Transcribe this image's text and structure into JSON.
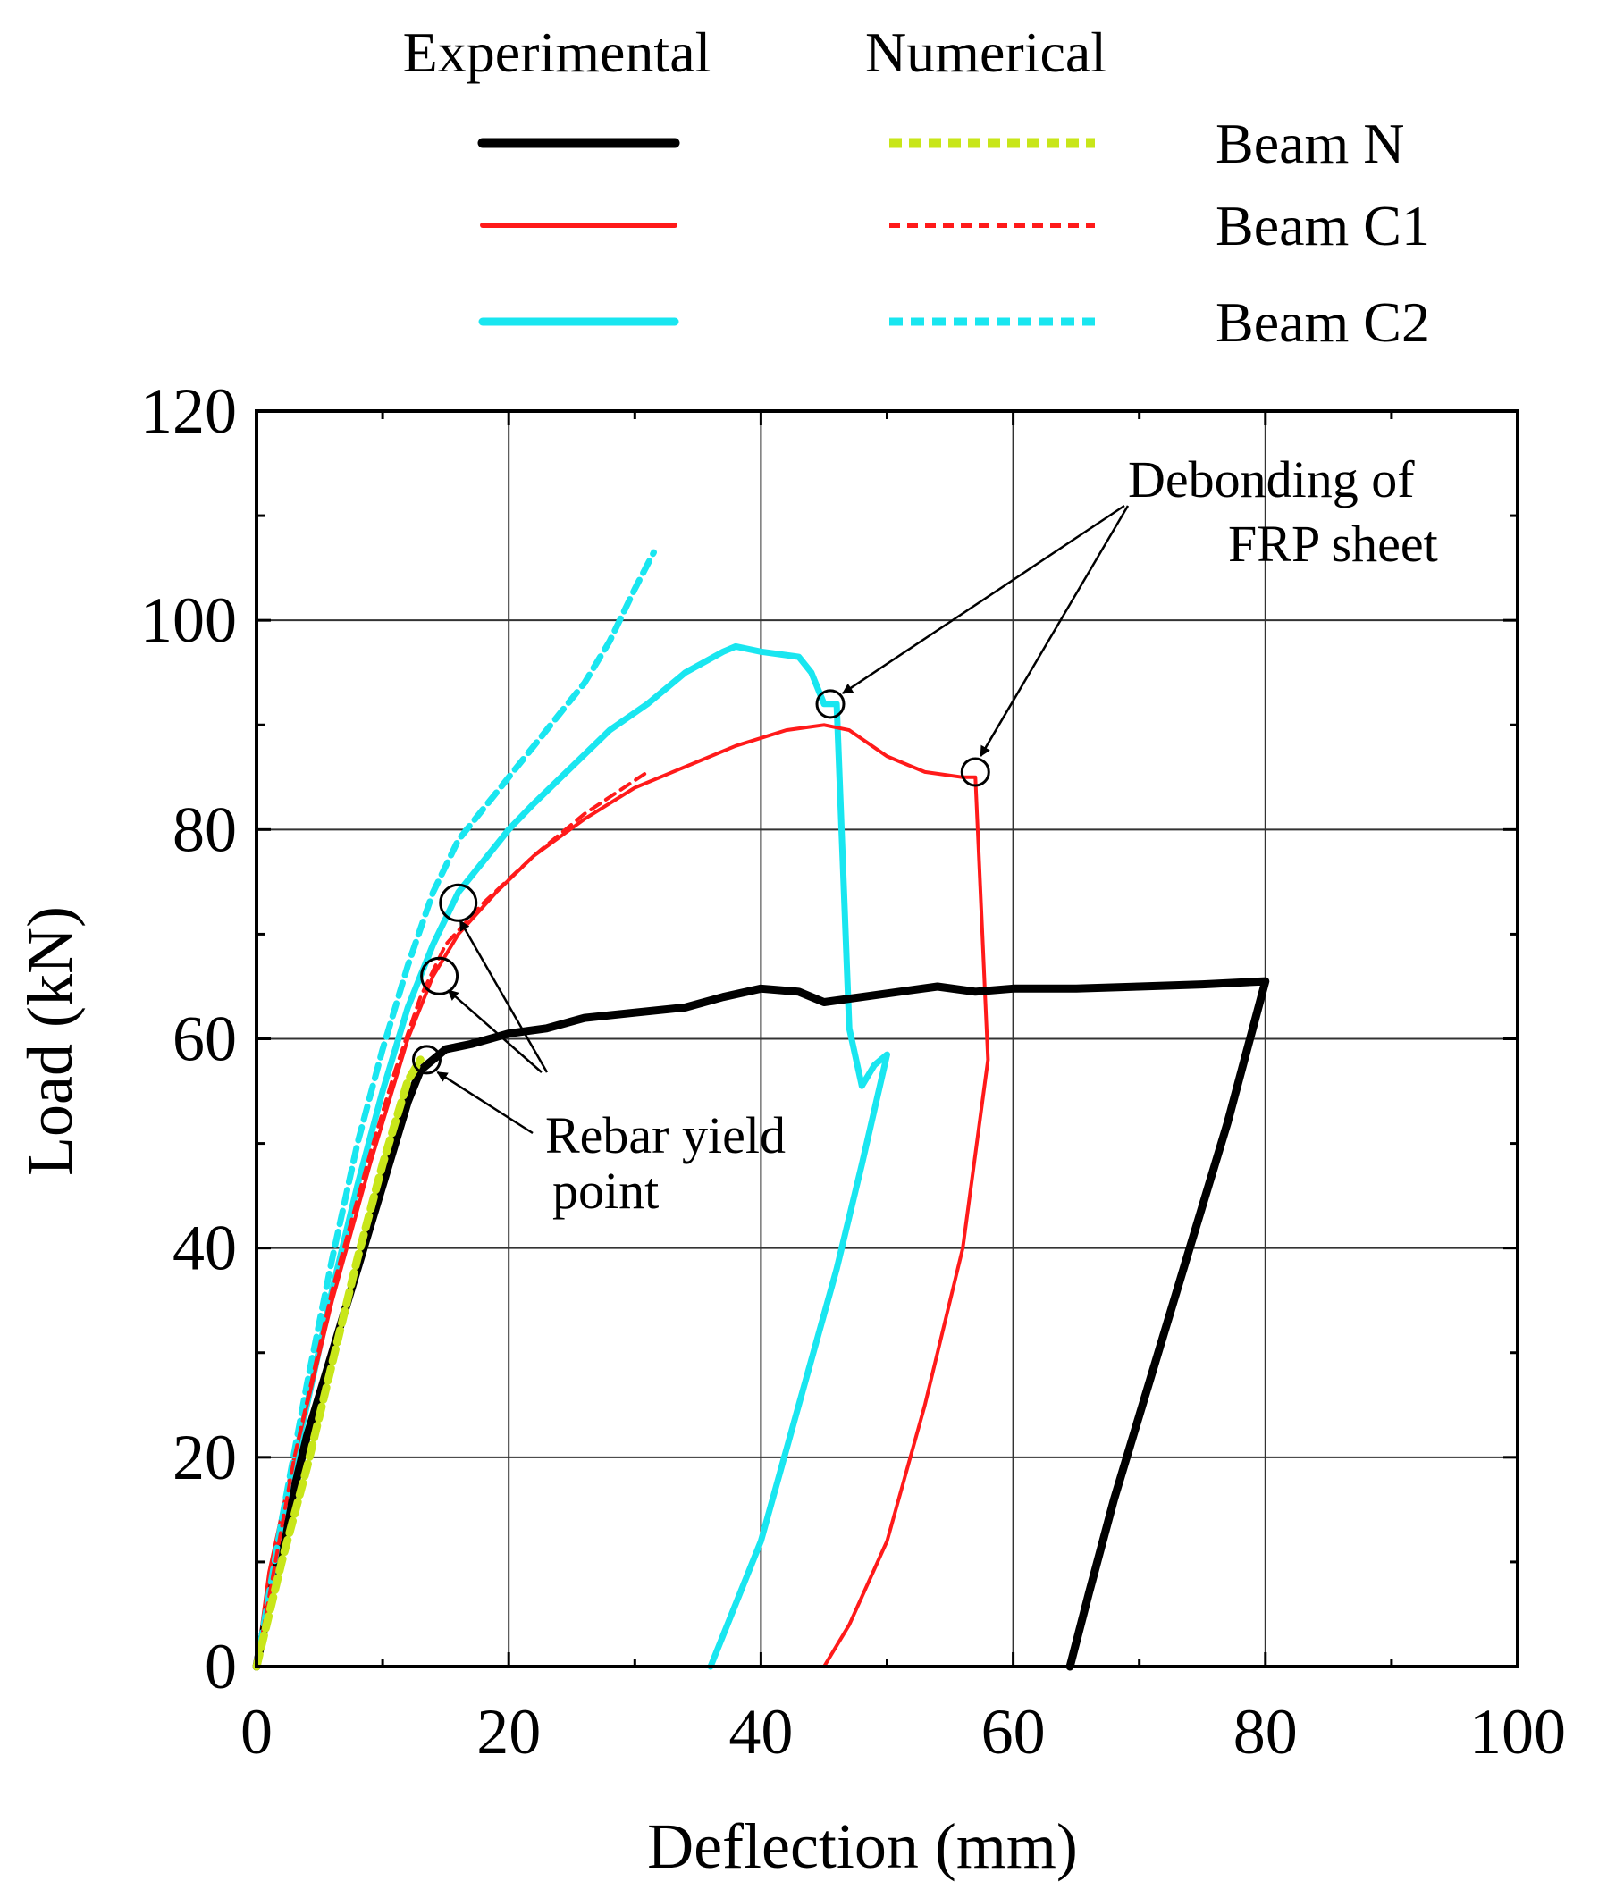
{
  "chart_data": {
    "type": "line",
    "xlabel": "Deflection (mm)",
    "ylabel": "Load (kN)",
    "xlim": [
      0,
      100
    ],
    "ylim": [
      0,
      120
    ],
    "xticks": [
      "0",
      "20",
      "40",
      "60",
      "80",
      "100"
    ],
    "yticks": [
      "0",
      "20",
      "40",
      "60",
      "80",
      "100",
      "120"
    ],
    "grid": true,
    "legend": {
      "position": "top",
      "col_experimental": "Experimental",
      "col_numerical": "Numerical",
      "entries": [
        {
          "label": "Beam N",
          "color": "#000000",
          "num_color": "#c8e619"
        },
        {
          "label": "Beam C1",
          "color": "#ff1a1a",
          "num_color": "#ff1a1a"
        },
        {
          "label": "Beam C2",
          "color": "#19e6f0",
          "num_color": "#19e6f0"
        }
      ]
    },
    "series": [
      {
        "name": "Beam N (Experimental)",
        "beam": "Beam N",
        "kind": "experimental",
        "color": "#000000",
        "points": [
          [
            0,
            0
          ],
          [
            2,
            12
          ],
          [
            4,
            22
          ],
          [
            7,
            34
          ],
          [
            10,
            46
          ],
          [
            12,
            54
          ],
          [
            13,
            57
          ],
          [
            15,
            59
          ],
          [
            17,
            59.5
          ],
          [
            20,
            60.5
          ],
          [
            23,
            61
          ],
          [
            26,
            62
          ],
          [
            30,
            62.5
          ],
          [
            34,
            63
          ],
          [
            37,
            64
          ],
          [
            40,
            64.8
          ],
          [
            43,
            64.5
          ],
          [
            45,
            63.5
          ],
          [
            48,
            64
          ],
          [
            51,
            64.5
          ],
          [
            54,
            65
          ],
          [
            57,
            64.5
          ],
          [
            60,
            64.8
          ],
          [
            65,
            64.8
          ],
          [
            70,
            65
          ],
          [
            75,
            65.2
          ],
          [
            80,
            65.5
          ],
          [
            77,
            52
          ],
          [
            74,
            40
          ],
          [
            71,
            28
          ],
          [
            68,
            16
          ],
          [
            66,
            7
          ],
          [
            64.5,
            0
          ]
        ]
      },
      {
        "name": "Beam N (Numerical)",
        "beam": "Beam N",
        "kind": "numerical",
        "color": "#c8e619",
        "points": [
          [
            0,
            0
          ],
          [
            1,
            5
          ],
          [
            2,
            10
          ],
          [
            4,
            19
          ],
          [
            6,
            29
          ],
          [
            8,
            39
          ],
          [
            10,
            48
          ],
          [
            12,
            56
          ],
          [
            13,
            58
          ]
        ]
      },
      {
        "name": "Beam C1 (Experimental)",
        "beam": "Beam C1",
        "kind": "experimental",
        "color": "#ff1a1a",
        "points": [
          [
            0,
            0
          ],
          [
            1,
            9
          ],
          [
            3,
            20
          ],
          [
            6,
            35
          ],
          [
            9,
            48
          ],
          [
            12,
            60
          ],
          [
            14,
            66
          ],
          [
            16,
            70
          ],
          [
            19,
            74
          ],
          [
            22,
            77.5
          ],
          [
            26,
            81
          ],
          [
            30,
            84
          ],
          [
            34,
            86
          ],
          [
            38,
            88
          ],
          [
            42,
            89.5
          ],
          [
            45,
            90
          ],
          [
            47,
            89.5
          ],
          [
            50,
            87
          ],
          [
            53,
            85.5
          ],
          [
            56,
            85
          ],
          [
            57,
            85
          ],
          [
            58,
            58
          ],
          [
            56,
            40
          ],
          [
            53,
            25
          ],
          [
            50,
            12
          ],
          [
            47,
            4
          ],
          [
            45,
            0
          ]
        ]
      },
      {
        "name": "Beam C1 (Numerical)",
        "beam": "Beam C1",
        "kind": "numerical",
        "color": "#ff1a1a",
        "points": [
          [
            0,
            0
          ],
          [
            3,
            20
          ],
          [
            6,
            36
          ],
          [
            9,
            49
          ],
          [
            11,
            57
          ],
          [
            13,
            64
          ],
          [
            15,
            69
          ],
          [
            18,
            73
          ],
          [
            22,
            77.5
          ],
          [
            26,
            81.5
          ],
          [
            31,
            85.5
          ]
        ]
      },
      {
        "name": "Beam C2 (Experimental)",
        "beam": "Beam C2",
        "kind": "experimental",
        "color": "#19e6f0",
        "points": [
          [
            0,
            0
          ],
          [
            2,
            14
          ],
          [
            4,
            25
          ],
          [
            6,
            36
          ],
          [
            8,
            46
          ],
          [
            10,
            55
          ],
          [
            12,
            63
          ],
          [
            14,
            69
          ],
          [
            16,
            74
          ],
          [
            18,
            77
          ],
          [
            20,
            80
          ],
          [
            22,
            82.5
          ],
          [
            25,
            86
          ],
          [
            28,
            89.5
          ],
          [
            31,
            92
          ],
          [
            34,
            95
          ],
          [
            37,
            97
          ],
          [
            38,
            97.5
          ],
          [
            40,
            97
          ],
          [
            43,
            96.5
          ],
          [
            44,
            95
          ],
          [
            45,
            92
          ],
          [
            46,
            92
          ],
          [
            47,
            61
          ],
          [
            48,
            55.5
          ],
          [
            49,
            57.5
          ],
          [
            50,
            58.5
          ],
          [
            48,
            48
          ],
          [
            46,
            38
          ],
          [
            43,
            25
          ],
          [
            40,
            12
          ],
          [
            37,
            3
          ],
          [
            36,
            0
          ]
        ]
      },
      {
        "name": "Beam C2 (Numerical)",
        "beam": "Beam C2",
        "kind": "numerical",
        "color": "#19e6f0",
        "points": [
          [
            0,
            0
          ],
          [
            2,
            14
          ],
          [
            4,
            27
          ],
          [
            6,
            39
          ],
          [
            8,
            50
          ],
          [
            10,
            59
          ],
          [
            12,
            67
          ],
          [
            14,
            74
          ],
          [
            16,
            79
          ],
          [
            18,
            82
          ],
          [
            20,
            85
          ],
          [
            22,
            88
          ],
          [
            24,
            91
          ],
          [
            26,
            94
          ],
          [
            28,
            98
          ],
          [
            30,
            103
          ],
          [
            31.5,
            106.5
          ]
        ]
      }
    ],
    "markers": [
      {
        "label": "yield-N",
        "x": 13.5,
        "y": 58,
        "size": "small"
      },
      {
        "label": "yield-C1",
        "x": 14.5,
        "y": 66,
        "size": "medium"
      },
      {
        "label": "yield-C2",
        "x": 16,
        "y": 73,
        "size": "medium"
      },
      {
        "label": "debond-C2",
        "x": 45.5,
        "y": 92,
        "size": "small"
      },
      {
        "label": "debond-C1",
        "x": 57,
        "y": 85.5,
        "size": "small"
      }
    ],
    "annotations": {
      "rebar_yield": [
        "Rebar yield",
        "point"
      ],
      "debonding": [
        "Debonding of",
        "FRP sheet"
      ]
    }
  }
}
